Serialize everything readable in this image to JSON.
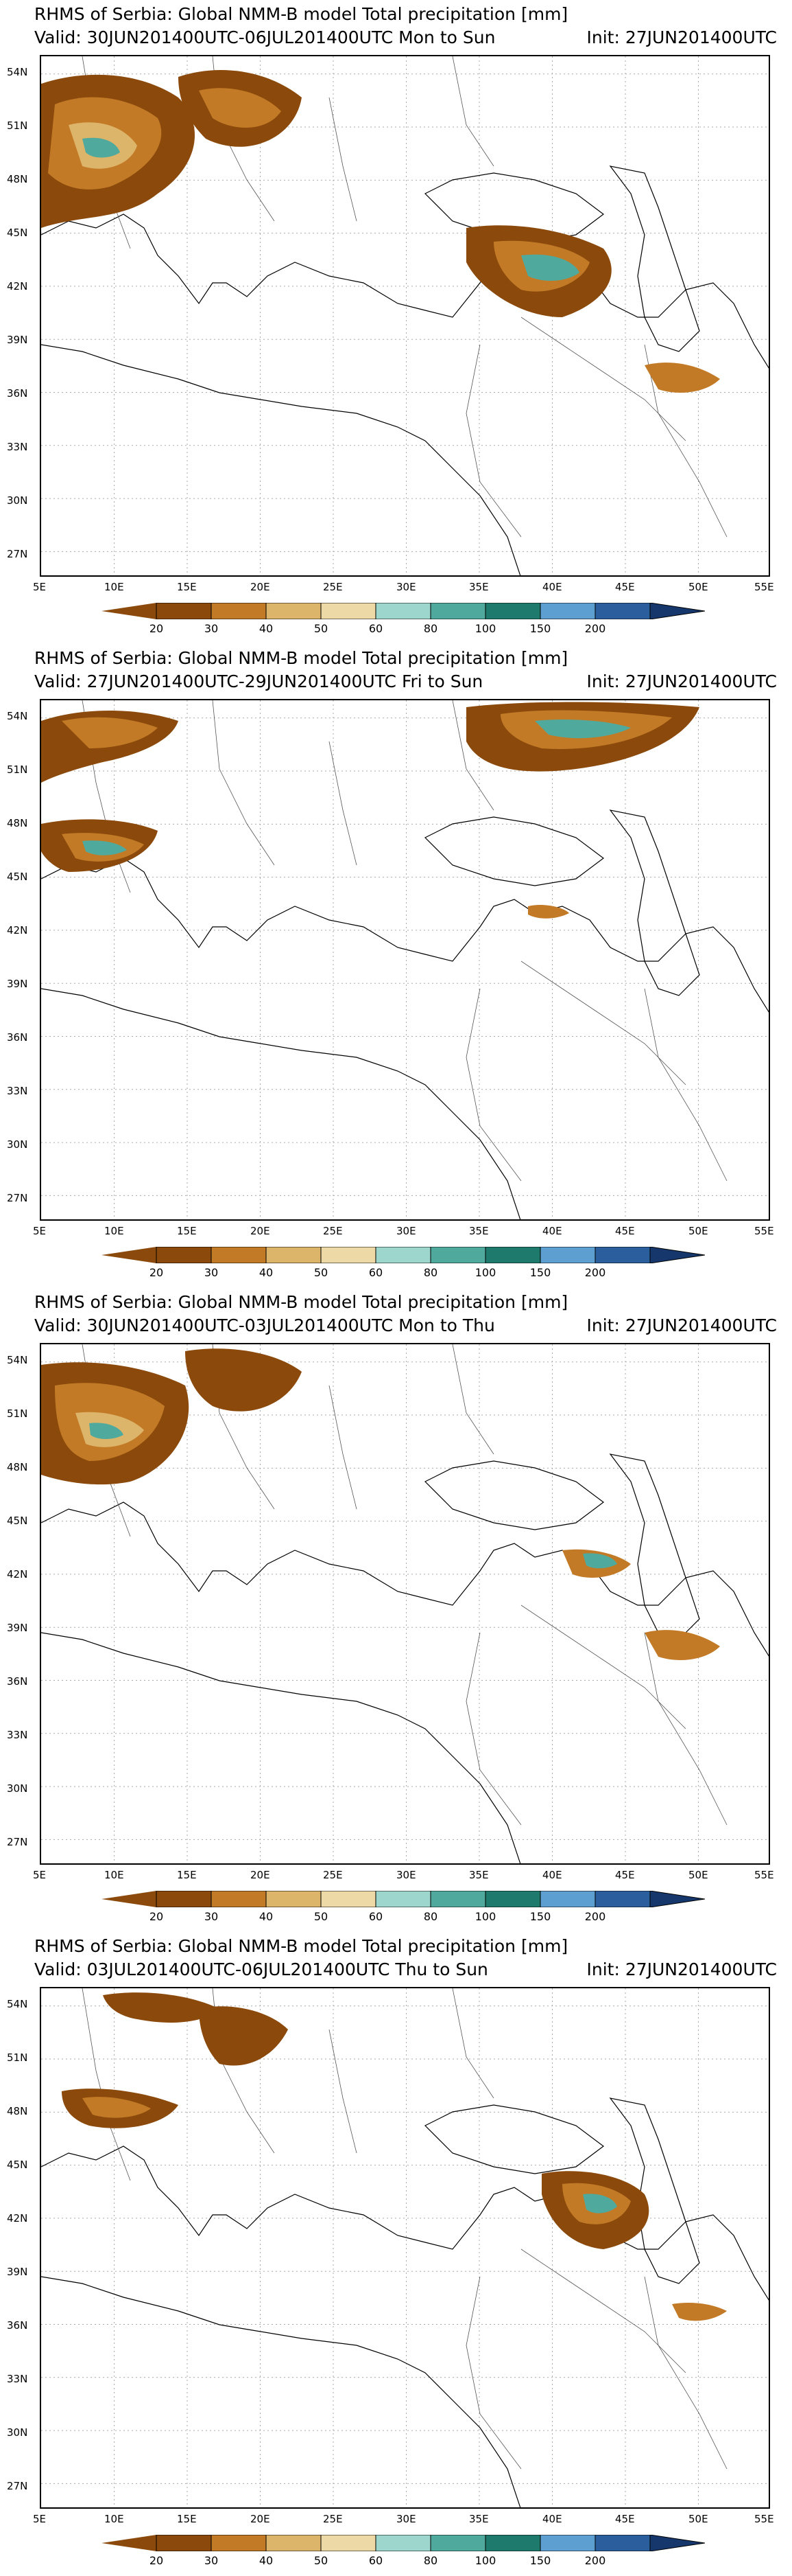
{
  "panels": [
    {
      "title": "RHMS of Serbia: Global NMM-B model Total precipitation [mm]",
      "valid": "Valid: 30JUN201400UTC-06JUL201400UTC Mon to Sun",
      "init": "Init: 27JUN201400UTC"
    },
    {
      "title": "RHMS of Serbia: Global NMM-B model Total precipitation [mm]",
      "valid": "Valid: 27JUN201400UTC-29JUN201400UTC Fri to Sun",
      "init": "Init: 27JUN201400UTC"
    },
    {
      "title": "RHMS of Serbia: Global NMM-B model Total precipitation [mm]",
      "valid": "Valid: 30JUN201400UTC-03JUL201400UTC Mon to Thu",
      "init": "Init: 27JUN201400UTC"
    },
    {
      "title": "RHMS of Serbia: Global NMM-B model Total precipitation [mm]",
      "valid": "Valid: 03JUL201400UTC-06JUL201400UTC Thu to Sun",
      "init": "Init: 27JUN201400UTC"
    }
  ],
  "axes": {
    "lon_labels": [
      "5E",
      "10E",
      "15E",
      "20E",
      "25E",
      "30E",
      "35E",
      "40E",
      "45E",
      "50E",
      "55E"
    ],
    "lat_labels": [
      "54N",
      "51N",
      "48N",
      "45N",
      "42N",
      "39N",
      "36N",
      "33N",
      "30N",
      "27N"
    ],
    "lon_range": [
      5,
      55
    ],
    "lat_range": [
      25.5,
      55
    ]
  },
  "colorbar": {
    "levels": [
      "20",
      "30",
      "40",
      "50",
      "60",
      "80",
      "100",
      "150",
      "200"
    ],
    "colors": [
      "#8b4a0c",
      "#c27a26",
      "#dcb46a",
      "#ecd9a6",
      "#9cd6cc",
      "#4faa9d",
      "#1e7a6c",
      "#5d9fd1",
      "#2a5e9c",
      "#15376b"
    ]
  }
}
